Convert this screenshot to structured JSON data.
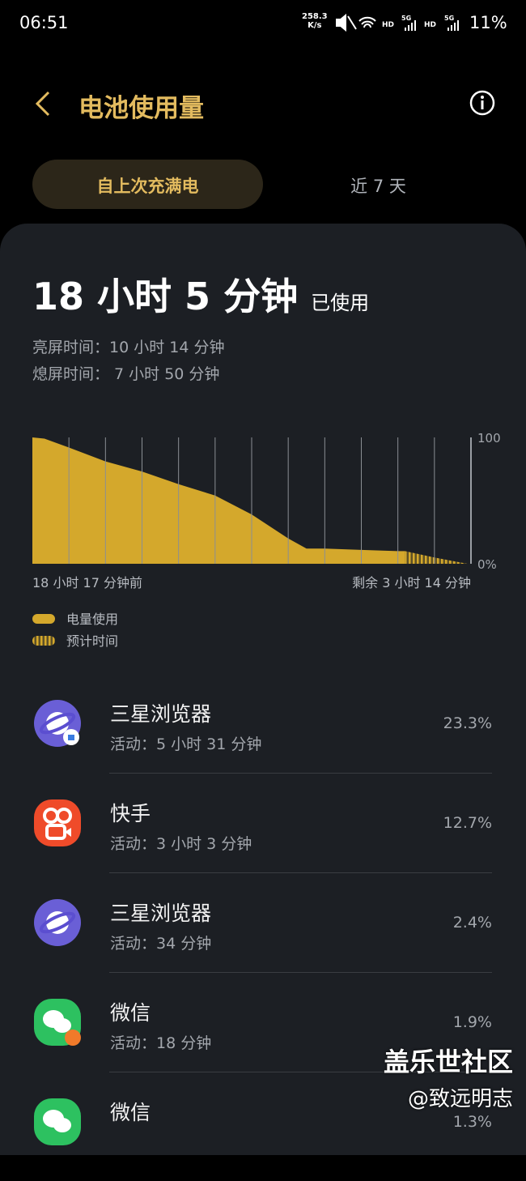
{
  "status_bar": {
    "time": "06:51",
    "net_speed": "258.3",
    "net_unit": "K/s",
    "signal_labels": [
      "HD",
      "5G",
      "HD",
      "5G"
    ],
    "battery": "11%"
  },
  "header": {
    "title": "电池使用量"
  },
  "tabs": [
    "自上次充满电",
    "近 7 天"
  ],
  "summary": {
    "total": "18 小时 5 分钟",
    "total_suffix": "已使用",
    "screen_on": "亮屏时间：10 小时 14 分钟",
    "screen_off": "熄屏时间： 7 小时 50 分钟"
  },
  "chart": {
    "type": "area",
    "start_label": "18 小时 17 分钟前",
    "end_label": "剩余 3 小时 14 分钟",
    "ylim": [
      0,
      100
    ],
    "yticks": [
      {
        "value": 0,
        "label": "0%"
      },
      100
    ],
    "xlim": [
      0,
      12
    ],
    "x_gridlines": [
      1,
      2,
      3,
      4,
      5,
      6,
      7,
      8,
      9,
      10,
      11,
      12
    ],
    "series": [
      {
        "name": "电量使用",
        "color": "#d4a82c",
        "x": [
          0,
          0.33,
          1,
          2,
          3,
          4,
          5,
          6,
          7,
          7.5,
          8,
          9,
          10,
          10.2
        ],
        "values": [
          100,
          99,
          92,
          81,
          73,
          63,
          54,
          39,
          20,
          12,
          12,
          11,
          10,
          10
        ]
      },
      {
        "name": "预计时间",
        "color": "#8a7434",
        "x": [
          10.2,
          11,
          11.9
        ],
        "values": [
          10,
          5,
          0
        ]
      }
    ]
  },
  "apps": [
    {
      "name": "三星浏览器",
      "activity": "活动：5 小时 31 分钟",
      "percent": "23.3%"
    },
    {
      "name": "快手",
      "activity": "活动：3 小时 3 分钟",
      "percent": "12.7%"
    },
    {
      "name": "三星浏览器",
      "activity": "活动：34 分钟",
      "percent": "2.4%"
    },
    {
      "name": "微信",
      "activity": "活动：18 分钟",
      "percent": "1.9%"
    },
    {
      "name": "微信",
      "percent": "1.3%"
    }
  ],
  "watermark": {
    "line1": "盖乐世社区",
    "line2": "@致远明志"
  }
}
